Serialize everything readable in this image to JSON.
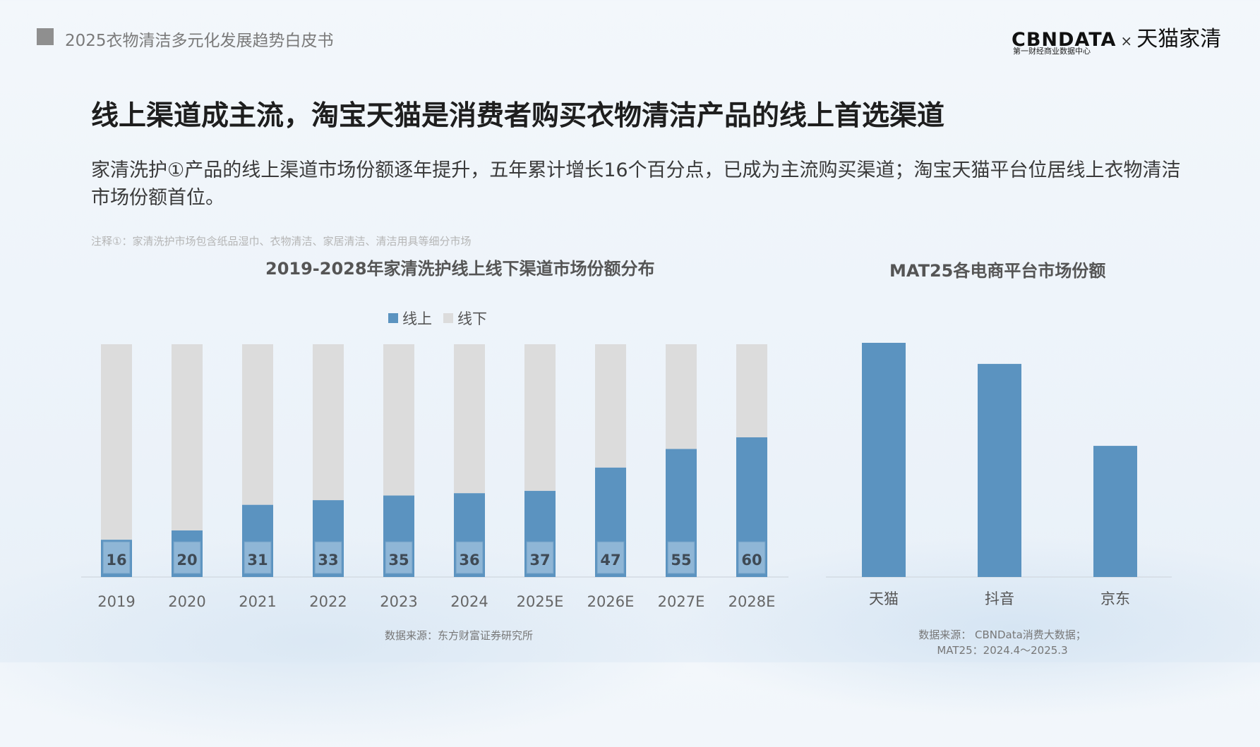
{
  "header": {
    "report_title": "2025衣物清洁多元化发展趋势白皮书",
    "logo_cbn": "CBNDATA",
    "logo_x": "×",
    "logo_brand": "天猫家清",
    "logo_sub": "第一财经商业数据中心"
  },
  "main_title": "线上渠道成主流，淘宝天猫是消费者购买衣物清洁产品的线上首选渠道",
  "subtitle": "家清洗护①产品的线上渠道市场份额逐年提升，五年累计增长16个百分点，已成为主流购买渠道；淘宝天猫平台位居线上衣物清洁市场份额首位。",
  "note": "注释①：家清洗护市场包含纸品湿巾、衣物清洁、家居清洁、清洁用具等细分市场",
  "colors": {
    "online": "#5b93c0",
    "offline": "#dcdcdc",
    "label_box": "#8fb6d6"
  },
  "chart_data": [
    {
      "type": "bar",
      "stacked": true,
      "title": "2019-2028年家清洗护线上线下渠道市场份额分布",
      "categories": [
        "2019",
        "2020",
        "2021",
        "2022",
        "2023",
        "2024",
        "2025E",
        "2026E",
        "2027E",
        "2028E"
      ],
      "series": [
        {
          "name": "线上",
          "values": [
            16,
            20,
            31,
            33,
            35,
            36,
            37,
            47,
            55,
            60
          ]
        },
        {
          "name": "线下",
          "values": [
            84,
            80,
            69,
            67,
            65,
            64,
            63,
            53,
            45,
            40
          ]
        }
      ],
      "ylim": [
        0,
        100
      ],
      "legend": "top-center",
      "source": "数据来源：东方财富证券研究所"
    },
    {
      "type": "bar",
      "title": "MAT25各电商平台市场份额",
      "categories": [
        "天猫",
        "抖音",
        "京东"
      ],
      "values": [
        100,
        91,
        56
      ],
      "source_line1": "数据来源： CBNData消费大数据；",
      "source_line2": "MAT25：2024.4～2025.3"
    }
  ]
}
